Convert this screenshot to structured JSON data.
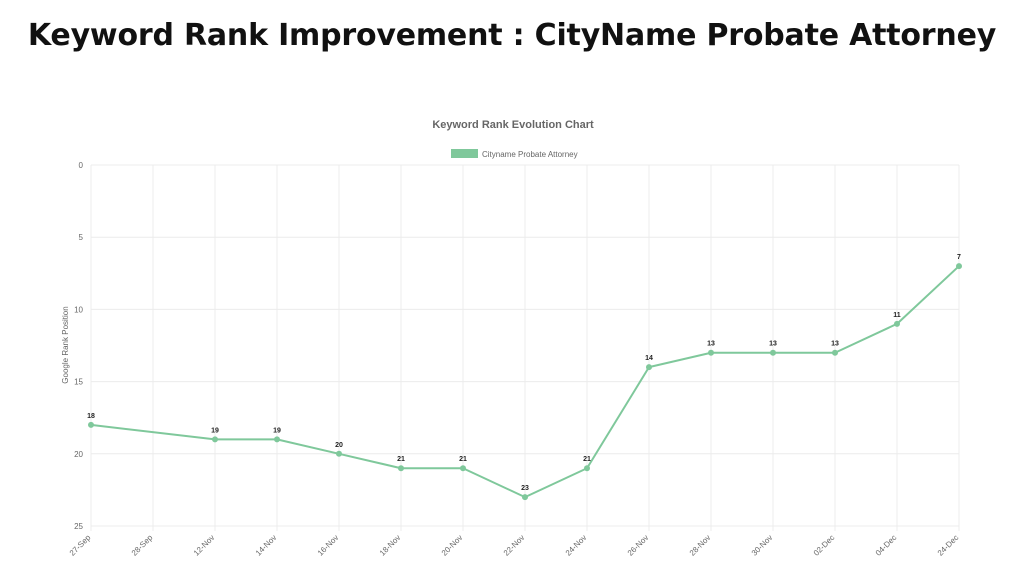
{
  "header": {
    "title": "Keyword Rank Improvement : CityName Probate Attorney"
  },
  "chart_data": {
    "type": "line",
    "title": "Keyword Rank Evolution Chart",
    "xlabel": "",
    "ylabel": "Google Rank Position",
    "ylim": [
      0,
      25
    ],
    "y_reversed": true,
    "y_ticks": [
      0,
      5,
      10,
      15,
      20,
      25
    ],
    "grid": true,
    "legend_position": "top-center",
    "categories": [
      "27-Sep",
      "28-Sep",
      "12-Nov",
      "14-Nov",
      "16-Nov",
      "18-Nov",
      "20-Nov",
      "22-Nov",
      "24-Nov",
      "26-Nov",
      "28-Nov",
      "30-Nov",
      "02-Dec",
      "04-Dec",
      "24-Dec"
    ],
    "series": [
      {
        "name": "Cityname Probate Attorney",
        "color": "#7fc89b",
        "values": [
          18,
          null,
          19,
          19,
          20,
          21,
          21,
          23,
          21,
          14,
          13,
          13,
          13,
          11,
          7
        ]
      }
    ]
  }
}
